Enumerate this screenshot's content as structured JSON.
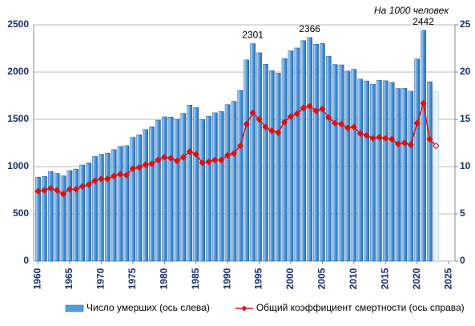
{
  "chart_data": {
    "type": "bar_line",
    "subtitle": "На 1000 человек",
    "x": [
      1960,
      1961,
      1962,
      1963,
      1964,
      1965,
      1966,
      1967,
      1968,
      1969,
      1970,
      1971,
      1972,
      1973,
      1974,
      1975,
      1976,
      1977,
      1978,
      1979,
      1980,
      1981,
      1982,
      1983,
      1984,
      1985,
      1986,
      1987,
      1988,
      1989,
      1990,
      1991,
      1992,
      1993,
      1994,
      1995,
      1996,
      1997,
      1998,
      1999,
      2000,
      2001,
      2002,
      2003,
      2004,
      2005,
      2006,
      2007,
      2008,
      2009,
      2010,
      2011,
      2012,
      2013,
      2014,
      2015,
      2016,
      2017,
      2018,
      2019,
      2020,
      2021,
      2022,
      2023
    ],
    "series": [
      {
        "name": "Число умерших (ось слева)",
        "color": "#4f9ee0",
        "kind": "bar",
        "axis": "y",
        "values": [
          887,
          897,
          949,
          928,
          902,
          958,
          974,
          1017,
          1040,
          1107,
          1131,
          1143,
          1180,
          1214,
          1222,
          1309,
          1337,
          1392,
          1422,
          1491,
          1526,
          1524,
          1504,
          1563,
          1650,
          1625,
          1498,
          1531,
          1569,
          1583,
          1656,
          1690,
          1807,
          2129,
          2301,
          2204,
          2082,
          2016,
          1988,
          2144,
          2225,
          2255,
          2332,
          2366,
          2295,
          2304,
          2166,
          2080,
          2076,
          2011,
          2029,
          1926,
          1906,
          1872,
          1914,
          1908,
          1891,
          1826,
          1829,
          1799,
          2139,
          2442,
          1898,
          1790
        ]
      },
      {
        "name": "Общий коэффициент смертности (ось справа)",
        "color": "#e01010",
        "kind": "line",
        "axis": "y2",
        "values": [
          7.4,
          7.5,
          7.7,
          7.5,
          7.1,
          7.6,
          7.6,
          7.9,
          8.1,
          8.5,
          8.7,
          8.7,
          9.0,
          9.2,
          9.1,
          9.8,
          9.9,
          10.2,
          10.3,
          10.7,
          11.0,
          10.9,
          10.6,
          11.0,
          11.6,
          11.3,
          10.4,
          10.5,
          10.7,
          10.7,
          11.2,
          11.4,
          12.2,
          14.5,
          15.7,
          15.0,
          14.2,
          13.8,
          13.6,
          14.7,
          15.3,
          15.6,
          16.2,
          16.4,
          15.9,
          16.1,
          15.2,
          14.6,
          14.5,
          14.1,
          14.2,
          13.5,
          13.3,
          13.0,
          13.1,
          13.0,
          12.9,
          12.4,
          12.5,
          12.3,
          14.6,
          16.7,
          12.9,
          12.2
        ]
      }
    ],
    "last_point_style": "hollow",
    "annotations": [
      {
        "text": "2301",
        "x": 1994,
        "y": 2301
      },
      {
        "text": "2366",
        "x": 2003,
        "y": 2366
      },
      {
        "text": "2442",
        "x": 2021,
        "y": 2442
      }
    ],
    "xlim": [
      1959.3,
      2026
    ],
    "xticks": [
      1960,
      1965,
      1970,
      1975,
      1980,
      1985,
      1990,
      1995,
      2000,
      2005,
      2010,
      2015,
      2020,
      2025
    ],
    "ylim": [
      0,
      2500
    ],
    "yticks": [
      0,
      500,
      1000,
      1500,
      2000,
      2500
    ],
    "y2lim": [
      0,
      25
    ],
    "y2ticks": [
      0,
      5,
      10,
      15,
      20,
      25
    ],
    "grid": true,
    "legend": "bottom"
  }
}
